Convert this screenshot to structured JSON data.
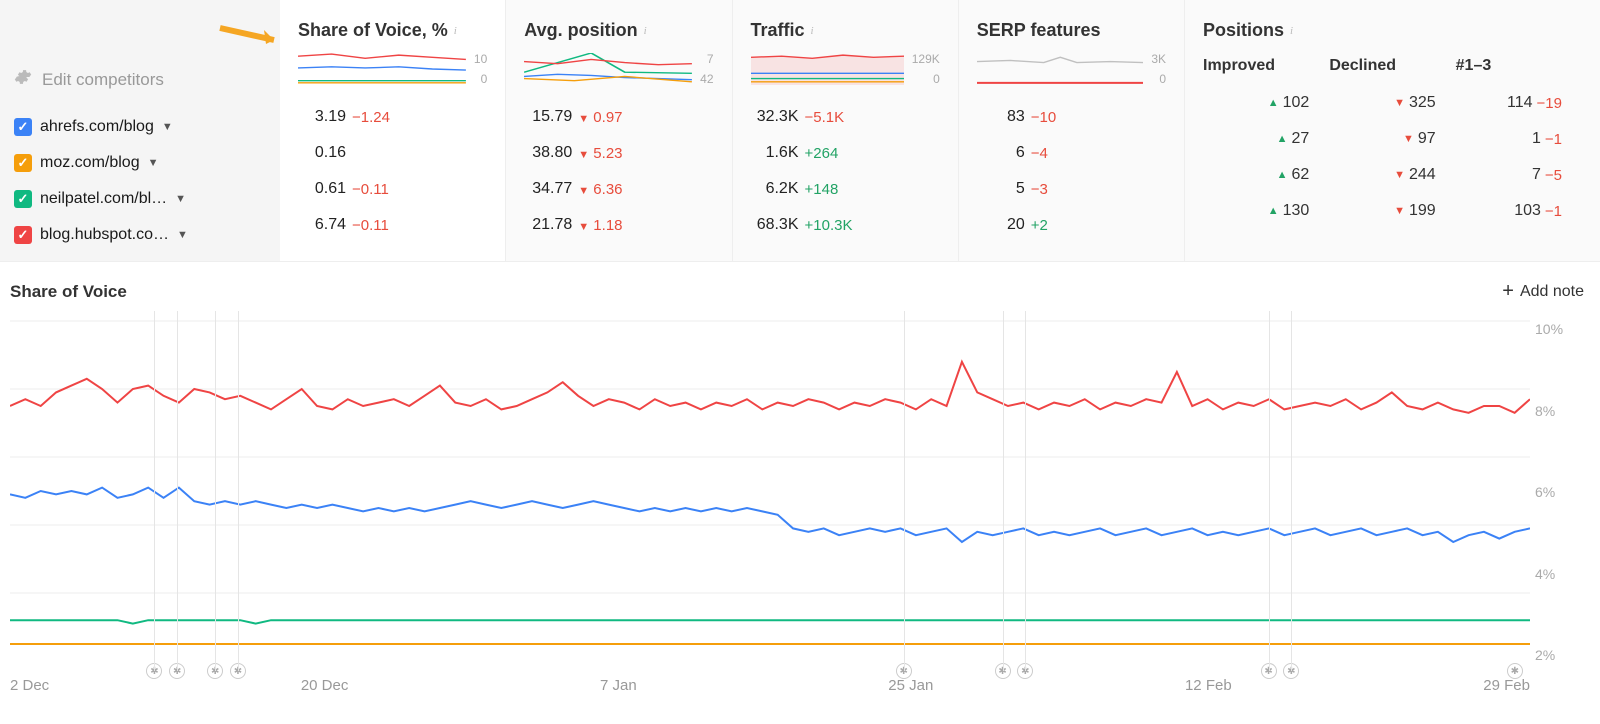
{
  "colors": {
    "ahrefs": "#3b82f6",
    "moz": "#f59e0b",
    "neilpatel": "#10b981",
    "hubspot": "#ef4444",
    "serp_spark": "#c0c0c0",
    "grid": "#eeeeee",
    "neg": "#e74c3c",
    "pos": "#22a365",
    "text_muted": "#aaaaaa"
  },
  "left": {
    "edit_label": "Edit competitors"
  },
  "competitors": [
    {
      "key": "ahrefs",
      "name": "ahrefs.com/blog",
      "color": "#3b82f6"
    },
    {
      "key": "moz",
      "name": "moz.com/blog",
      "color": "#f59e0b"
    },
    {
      "key": "neilpatel",
      "name": "neilpatel.com/bl…",
      "color": "#10b981"
    },
    {
      "key": "hubspot",
      "name": "blog.hubspot.co…",
      "color": "#ef4444"
    }
  ],
  "cards": {
    "sov": {
      "title": "Share of Voice, %",
      "scale_top": "10",
      "scale_bottom": "0",
      "rows": [
        {
          "value": "3.19",
          "delta": "−1.24",
          "dir": "neg"
        },
        {
          "value": "0.16",
          "delta": "",
          "dir": ""
        },
        {
          "value": "0.61",
          "delta": "−0.11",
          "dir": "neg"
        },
        {
          "value": "6.74",
          "delta": "−0.11",
          "dir": "neg"
        }
      ]
    },
    "avgpos": {
      "title": "Avg. position",
      "scale_top": "7",
      "scale_bottom": "42",
      "rows": [
        {
          "value": "15.79",
          "delta": "0.97",
          "dir": "neg",
          "arrow": "down"
        },
        {
          "value": "38.80",
          "delta": "5.23",
          "dir": "neg",
          "arrow": "down"
        },
        {
          "value": "34.77",
          "delta": "6.36",
          "dir": "neg",
          "arrow": "down"
        },
        {
          "value": "21.78",
          "delta": "1.18",
          "dir": "neg",
          "arrow": "down"
        }
      ]
    },
    "traffic": {
      "title": "Traffic",
      "scale_top": "129K",
      "scale_bottom": "0",
      "rows": [
        {
          "value": "32.3K",
          "delta": "−5.1K",
          "dir": "neg"
        },
        {
          "value": "1.6K",
          "delta": "+264",
          "dir": "pos"
        },
        {
          "value": "6.2K",
          "delta": "+148",
          "dir": "pos"
        },
        {
          "value": "68.3K",
          "delta": "+10.3K",
          "dir": "pos"
        }
      ]
    },
    "serp": {
      "title": "SERP features",
      "scale_top": "3K",
      "scale_bottom": "0",
      "rows": [
        {
          "value": "83",
          "delta": "−10",
          "dir": "neg"
        },
        {
          "value": "6",
          "delta": "−4",
          "dir": "neg"
        },
        {
          "value": "5",
          "delta": "−3",
          "dir": "neg"
        },
        {
          "value": "20",
          "delta": "+2",
          "dir": "pos"
        }
      ]
    }
  },
  "positions": {
    "title": "Positions",
    "sub_headers": [
      "Improved",
      "Declined",
      "#1–3"
    ],
    "rows": [
      {
        "improved": "102",
        "declined": "325",
        "top3": "114",
        "top3_delta": "−19"
      },
      {
        "improved": "27",
        "declined": "97",
        "top3": "1",
        "top3_delta": "−1"
      },
      {
        "improved": "62",
        "declined": "244",
        "top3": "7",
        "top3_delta": "−5"
      },
      {
        "improved": "130",
        "declined": "199",
        "top3": "103",
        "top3_delta": "−1"
      }
    ]
  },
  "chart": {
    "title": "Share of Voice",
    "add_note_label": "Add note",
    "y_ticks": [
      "10%",
      "8%",
      "6%",
      "4%",
      "2%"
    ],
    "x_ticks": [
      "2 Dec",
      "20 Dec",
      "7 Jan",
      "25 Jan",
      "12 Feb",
      "29 Feb"
    ],
    "y_domain": [
      0,
      10
    ],
    "note_marker_positions_pct": [
      9.5,
      11.0,
      13.5,
      15.0,
      58.8,
      65.3,
      66.8,
      82.8,
      84.3,
      99.0
    ],
    "vline_positions_pct": [
      9.5,
      11.0,
      13.5,
      15.0,
      58.8,
      65.3,
      66.8,
      82.8,
      84.3
    ],
    "series": {
      "hubspot": [
        7.5,
        7.7,
        7.5,
        7.9,
        8.1,
        8.3,
        8.0,
        7.6,
        8.0,
        8.1,
        7.8,
        7.6,
        8.0,
        7.9,
        7.7,
        7.8,
        7.6,
        7.4,
        7.7,
        8.0,
        7.5,
        7.4,
        7.7,
        7.5,
        7.6,
        7.7,
        7.5,
        7.8,
        8.1,
        7.6,
        7.5,
        7.7,
        7.4,
        7.5,
        7.7,
        7.9,
        8.2,
        7.8,
        7.5,
        7.7,
        7.6,
        7.4,
        7.7,
        7.5,
        7.6,
        7.4,
        7.6,
        7.5,
        7.7,
        7.4,
        7.6,
        7.5,
        7.7,
        7.6,
        7.4,
        7.6,
        7.5,
        7.7,
        7.6,
        7.4,
        7.7,
        7.5,
        8.8,
        7.9,
        7.7,
        7.5,
        7.6,
        7.4,
        7.6,
        7.5,
        7.7,
        7.4,
        7.6,
        7.5,
        7.7,
        7.6,
        8.5,
        7.5,
        7.7,
        7.4,
        7.6,
        7.5,
        7.7,
        7.4,
        7.5,
        7.6,
        7.5,
        7.7,
        7.4,
        7.6,
        7.9,
        7.5,
        7.4,
        7.6,
        7.4,
        7.3,
        7.5,
        7.5,
        7.3,
        7.7
      ],
      "ahrefs": [
        4.9,
        4.8,
        5.0,
        4.9,
        5.0,
        4.9,
        5.1,
        4.8,
        4.9,
        5.1,
        4.8,
        5.1,
        4.7,
        4.6,
        4.7,
        4.6,
        4.7,
        4.6,
        4.5,
        4.6,
        4.5,
        4.6,
        4.5,
        4.4,
        4.5,
        4.4,
        4.5,
        4.4,
        4.5,
        4.6,
        4.7,
        4.6,
        4.5,
        4.6,
        4.7,
        4.6,
        4.5,
        4.6,
        4.7,
        4.6,
        4.5,
        4.4,
        4.5,
        4.4,
        4.5,
        4.4,
        4.5,
        4.4,
        4.5,
        4.4,
        4.3,
        3.9,
        3.8,
        3.9,
        3.7,
        3.8,
        3.9,
        3.8,
        3.9,
        3.7,
        3.8,
        3.9,
        3.5,
        3.8,
        3.7,
        3.8,
        3.9,
        3.7,
        3.8,
        3.7,
        3.8,
        3.9,
        3.7,
        3.8,
        3.9,
        3.7,
        3.8,
        3.9,
        3.7,
        3.8,
        3.7,
        3.8,
        3.9,
        3.7,
        3.8,
        3.9,
        3.7,
        3.8,
        3.9,
        3.7,
        3.8,
        3.9,
        3.7,
        3.8,
        3.5,
        3.7,
        3.8,
        3.6,
        3.8,
        3.9
      ],
      "neilpatel": [
        1.2,
        1.2,
        1.2,
        1.2,
        1.2,
        1.2,
        1.2,
        1.2,
        1.1,
        1.2,
        1.2,
        1.2,
        1.2,
        1.2,
        1.2,
        1.2,
        1.1,
        1.2,
        1.2,
        1.2,
        1.2,
        1.2,
        1.2,
        1.2,
        1.2,
        1.2,
        1.2,
        1.2,
        1.2,
        1.2,
        1.2,
        1.2,
        1.2,
        1.2,
        1.2,
        1.2,
        1.2,
        1.2,
        1.2,
        1.2,
        1.2,
        1.2,
        1.2,
        1.2,
        1.2,
        1.2,
        1.2,
        1.2,
        1.2,
        1.2,
        1.2,
        1.2,
        1.2,
        1.2,
        1.2,
        1.2,
        1.2,
        1.2,
        1.2,
        1.2,
        1.2,
        1.2,
        1.2,
        1.2,
        1.2,
        1.2,
        1.2,
        1.2,
        1.2,
        1.2,
        1.2,
        1.2,
        1.2,
        1.2,
        1.2,
        1.2,
        1.2,
        1.2,
        1.2,
        1.2,
        1.2,
        1.2,
        1.2,
        1.2,
        1.2,
        1.2,
        1.2,
        1.2,
        1.2,
        1.2,
        1.2,
        1.2,
        1.2,
        1.2,
        1.2,
        1.2,
        1.2,
        1.2,
        1.2,
        1.2
      ],
      "moz": [
        0.5,
        0.5,
        0.5,
        0.5,
        0.5,
        0.5,
        0.5,
        0.5,
        0.5,
        0.5,
        0.5,
        0.5,
        0.5,
        0.5,
        0.5,
        0.5,
        0.5,
        0.5,
        0.5,
        0.5,
        0.5,
        0.5,
        0.5,
        0.5,
        0.5,
        0.5,
        0.5,
        0.5,
        0.5,
        0.5,
        0.5,
        0.5,
        0.5,
        0.5,
        0.5,
        0.5,
        0.5,
        0.5,
        0.5,
        0.5,
        0.5,
        0.5,
        0.5,
        0.5,
        0.5,
        0.5,
        0.5,
        0.5,
        0.5,
        0.5,
        0.5,
        0.5,
        0.5,
        0.5,
        0.5,
        0.5,
        0.5,
        0.5,
        0.5,
        0.5,
        0.5,
        0.5,
        0.5,
        0.5,
        0.5,
        0.5,
        0.5,
        0.5,
        0.5,
        0.5,
        0.5,
        0.5,
        0.5,
        0.5,
        0.5,
        0.5,
        0.5,
        0.5,
        0.5,
        0.5,
        0.5,
        0.5,
        0.5,
        0.5,
        0.5,
        0.5,
        0.5,
        0.5,
        0.5,
        0.5,
        0.5,
        0.5,
        0.5,
        0.5,
        0.5,
        0.5,
        0.5,
        0.5,
        0.5,
        0.5
      ]
    }
  },
  "sparklines": {
    "sov": {
      "hubspot": "0,3 20,1 40,5 60,2 80,4 100,6",
      "ahrefs": "0,14 20,13 40,14 60,13 80,15 100,16",
      "neilpatel": "0,26 100,26",
      "moz": "0,28 100,28"
    },
    "avgpos": {
      "hubspot": "0,8 20,10 40,6 60,9 80,11 100,10",
      "ahrefs": "0,22 20,20 40,21 60,23 80,24 100,25",
      "neilpatel": "0,18 40,0 60,18 100,19",
      "moz": "0,24 30,26 60,22 100,27"
    },
    "traffic": {
      "hubspot": "0,4 20,3 40,5 60,2 80,4 100,3",
      "ahrefs": "0,19 100,19",
      "neilpatel": "0,24 100,24",
      "moz": "0,27 100,27"
    },
    "serp": {
      "line": "0,8 20,7 40,9 50,4 60,9 80,8 100,9",
      "base": "0,28 100,28"
    }
  }
}
